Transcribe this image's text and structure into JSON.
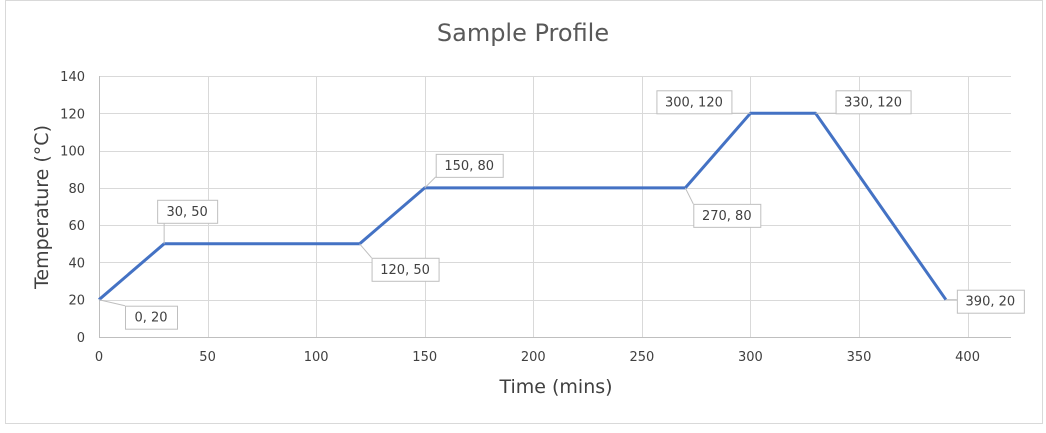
{
  "chart_data": {
    "type": "line",
    "title": "Sample Profile",
    "xlabel": "Time (mins)",
    "ylabel": "Temperature (°C)",
    "xlim": [
      0,
      420
    ],
    "ylim": [
      0,
      140
    ],
    "x_ticks": [
      0,
      50,
      100,
      150,
      200,
      250,
      300,
      350,
      400
    ],
    "y_ticks": [
      0,
      20,
      40,
      60,
      80,
      100,
      120,
      140
    ],
    "grid": true,
    "line_color": "#4472c4",
    "series": [
      {
        "x": [
          0,
          30,
          120,
          150,
          270,
          300,
          330,
          390
        ],
        "y": [
          20,
          50,
          50,
          80,
          80,
          120,
          120,
          20
        ]
      }
    ],
    "data_labels": [
      "0, 20",
      "30, 50",
      "120, 50",
      "150, 80",
      "270, 80",
      "300, 120",
      "330, 120",
      "390, 20"
    ]
  }
}
